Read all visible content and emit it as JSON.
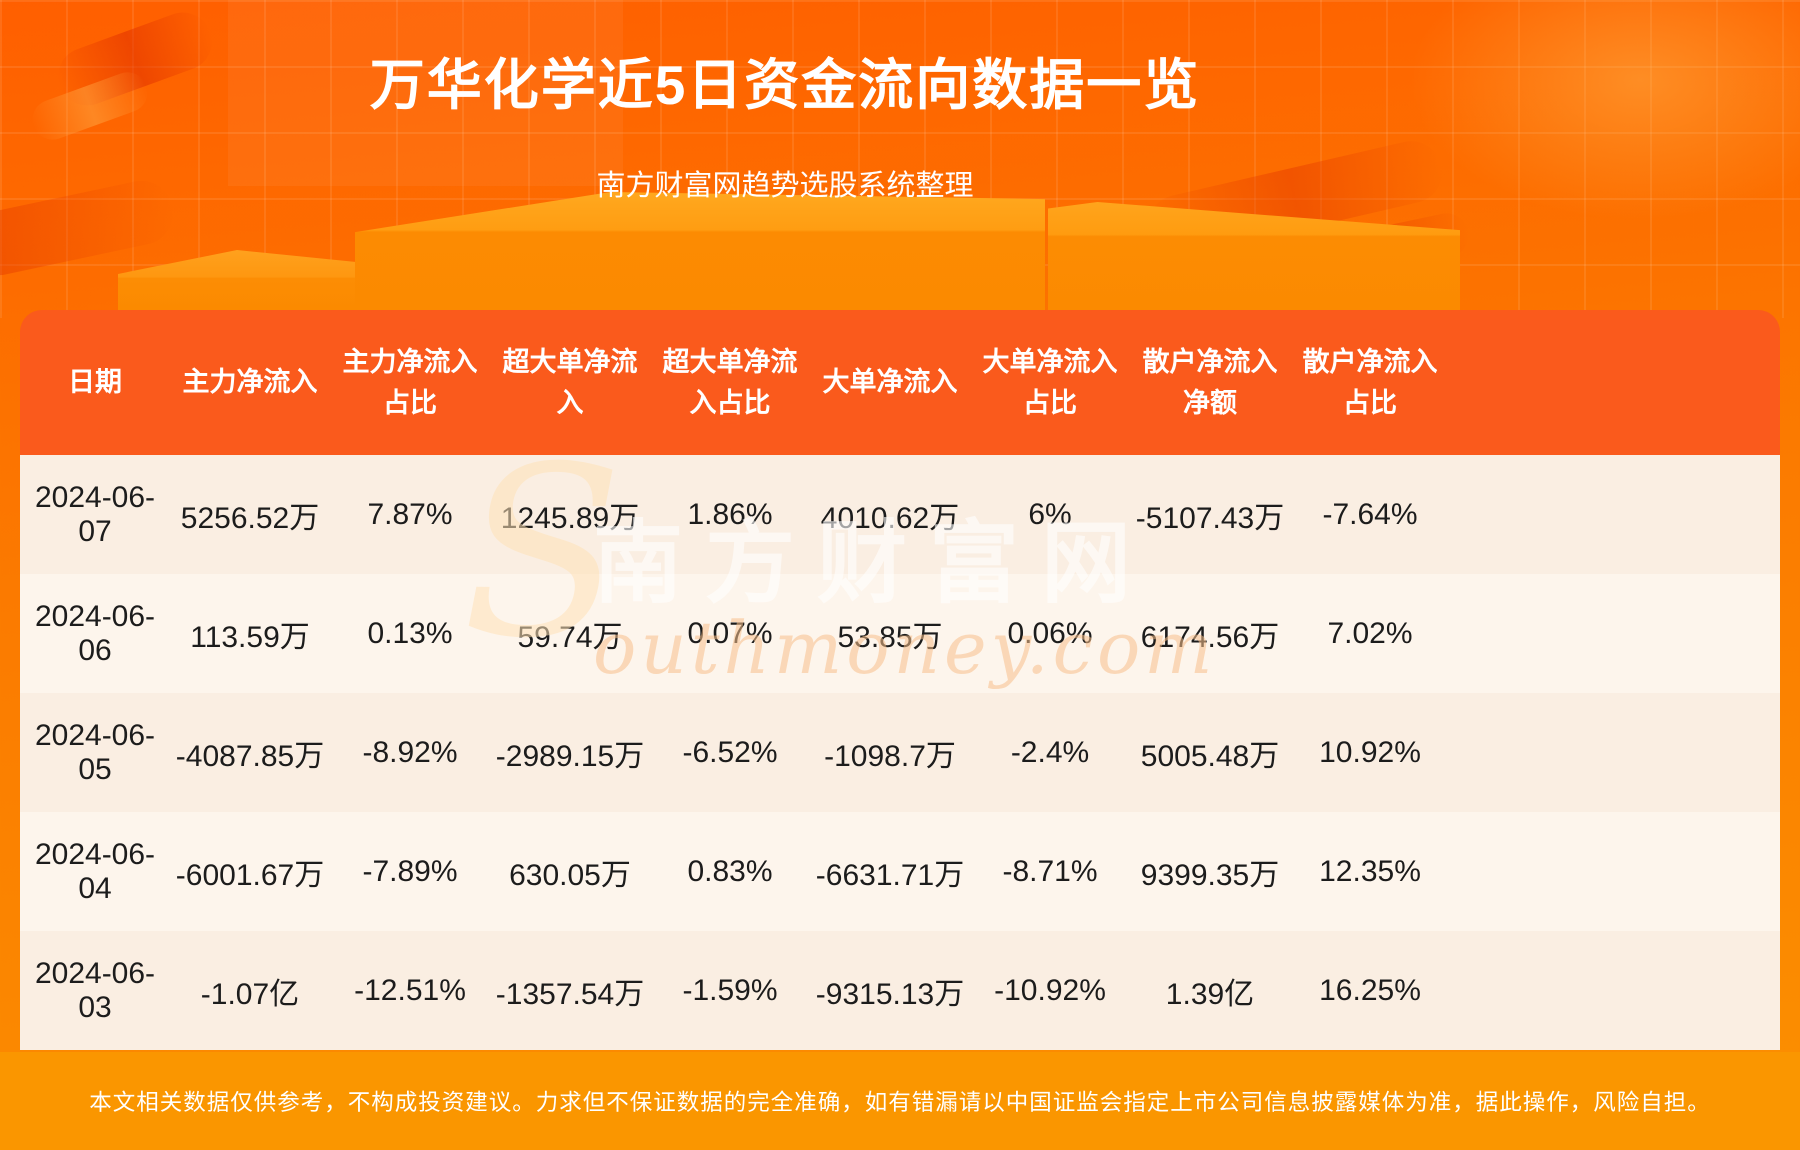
{
  "hero": {
    "title": "万华化学近5日资金流向数据一览",
    "subtitle": "南方财富网趋势选股系统整理"
  },
  "watermark": {
    "initial": "S",
    "cn": "南方财富网",
    "en": "outhmoney.com"
  },
  "table": {
    "headers": [
      {
        "l1": "日期",
        "l2": ""
      },
      {
        "l1": "主力净流入",
        "l2": ""
      },
      {
        "l1": "主力净流入",
        "l2": "占比"
      },
      {
        "l1": "超大单净流",
        "l2": "入"
      },
      {
        "l1": "超大单净流",
        "l2": "入占比"
      },
      {
        "l1": "大单净流入",
        "l2": ""
      },
      {
        "l1": "大单净流入",
        "l2": "占比"
      },
      {
        "l1": "散户净流入",
        "l2": "净额"
      },
      {
        "l1": "散户净流入",
        "l2": "占比"
      }
    ],
    "rows": [
      [
        "2024-06-07",
        "5256.52万",
        "7.87%",
        "1245.89万",
        "1.86%",
        "4010.62万",
        "6%",
        "-5107.43万",
        "-7.64%"
      ],
      [
        "2024-06-06",
        "113.59万",
        "0.13%",
        "59.74万",
        "0.07%",
        "53.85万",
        "0.06%",
        "6174.56万",
        "7.02%"
      ],
      [
        "2024-06-05",
        "-4087.85万",
        "-8.92%",
        "-2989.15万",
        "-6.52%",
        "-1098.7万",
        "-2.4%",
        "5005.48万",
        "10.92%"
      ],
      [
        "2024-06-04",
        "-6001.67万",
        "-7.89%",
        "630.05万",
        "0.83%",
        "-6631.71万",
        "-8.71%",
        "9399.35万",
        "12.35%"
      ],
      [
        "2024-06-03",
        "-1.07亿",
        "-12.51%",
        "-1357.54万",
        "-1.59%",
        "-9315.13万",
        "-10.92%",
        "1.39亿",
        "16.25%"
      ]
    ]
  },
  "footer": {
    "disclaimer": "本文相关数据仅供参考，不构成投资建议。力求但不保证数据的完全准确，如有错漏请以中国证监会指定上市公司信息披露媒体为准，据此操作，风险自担。"
  },
  "colors": {
    "background_top": "#ff5f00",
    "background_bottom": "#fb9000",
    "table_header_bg": "#fa5a1c",
    "row_odd": "#faeee2",
    "row_even": "#fdf5ec",
    "footer_bg": "#fa9600",
    "cell_text": "#1c1c1c",
    "title_text": "#ffffff"
  },
  "chart_data": {
    "type": "table",
    "title": "万华化学近5日资金流向数据一览",
    "subtitle": "南方财富网趋势选股系统整理",
    "columns": [
      "日期",
      "主力净流入",
      "主力净流入占比",
      "超大单净流入",
      "超大单净流入占比",
      "大单净流入",
      "大单净流入占比",
      "散户净流入净额",
      "散户净流入占比"
    ],
    "rows": [
      [
        "2024-06-07",
        "5256.52万",
        "7.87%",
        "1245.89万",
        "1.86%",
        "4010.62万",
        "6%",
        "-5107.43万",
        "-7.64%"
      ],
      [
        "2024-06-06",
        "113.59万",
        "0.13%",
        "59.74万",
        "0.07%",
        "53.85万",
        "0.06%",
        "6174.56万",
        "7.02%"
      ],
      [
        "2024-06-05",
        "-4087.85万",
        "-8.92%",
        "-2989.15万",
        "-6.52%",
        "-1098.7万",
        "-2.4%",
        "5005.48万",
        "10.92%"
      ],
      [
        "2024-06-04",
        "-6001.67万",
        "-7.89%",
        "630.05万",
        "0.83%",
        "-6631.71万",
        "-8.71%",
        "9399.35万",
        "12.35%"
      ],
      [
        "2024-06-03",
        "-1.07亿",
        "-12.51%",
        "-1357.54万",
        "-1.59%",
        "-9315.13万",
        "-10.92%",
        "1.39亿",
        "16.25%"
      ]
    ]
  }
}
